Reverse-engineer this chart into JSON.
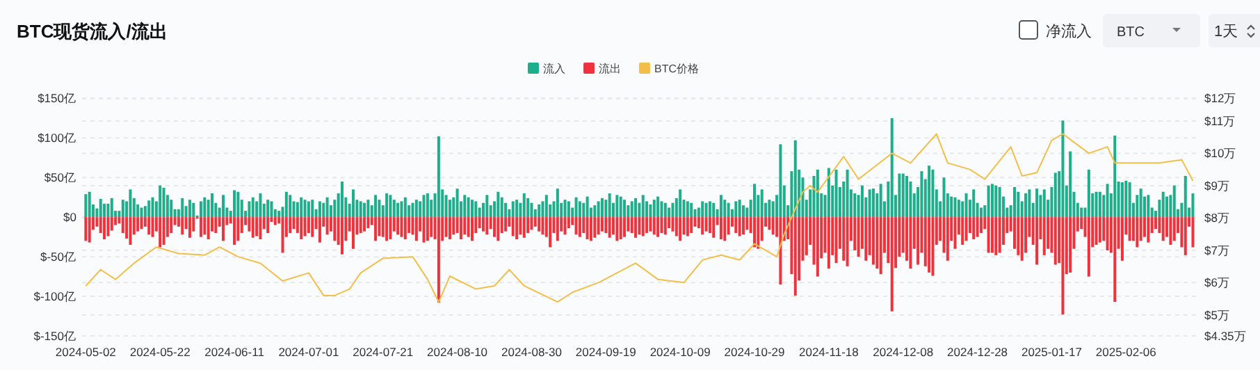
{
  "chart_data": {
    "type": "bar",
    "title": "BTC现货流入/流出",
    "annotations": [
      "净流入",
      "BTC",
      "1天"
    ],
    "legend": "top",
    "grid": "y",
    "x": [
      "2024-05-02",
      "2024-05-03",
      "2024-05-04",
      "2024-05-05",
      "2024-05-06",
      "2024-05-07",
      "2024-05-08",
      "2024-05-09",
      "2024-05-10",
      "2024-05-11",
      "2024-05-12",
      "2024-05-13",
      "2024-05-14",
      "2024-05-15",
      "2024-05-16",
      "2024-05-17",
      "2024-05-18",
      "2024-05-19",
      "2024-05-20",
      "2024-05-21",
      "2024-05-22",
      "2024-05-23",
      "2024-05-24",
      "2024-05-25",
      "2024-05-26",
      "2024-05-27",
      "2024-05-28",
      "2024-05-29",
      "2024-05-30",
      "2024-05-31",
      "2024-06-01",
      "2024-06-02",
      "2024-06-03",
      "2024-06-04",
      "2024-06-05",
      "2024-06-06",
      "2024-06-07",
      "2024-06-08",
      "2024-06-09",
      "2024-06-10",
      "2024-06-11",
      "2024-06-12",
      "2024-06-13",
      "2024-06-14",
      "2024-06-15",
      "2024-06-16",
      "2024-06-17",
      "2024-06-18",
      "2024-06-19",
      "2024-06-20",
      "2024-06-21",
      "2024-06-22",
      "2024-06-23",
      "2024-06-24",
      "2024-06-25",
      "2024-06-26",
      "2024-06-27",
      "2024-06-28",
      "2024-06-29",
      "2024-06-30",
      "2024-07-01",
      "2024-07-02",
      "2024-07-03",
      "2024-07-04",
      "2024-07-05",
      "2024-07-06",
      "2024-07-07",
      "2024-07-08",
      "2024-07-09",
      "2024-07-10",
      "2024-07-11",
      "2024-07-12",
      "2024-07-13",
      "2024-07-14",
      "2024-07-15",
      "2024-07-16",
      "2024-07-17",
      "2024-07-18",
      "2024-07-19",
      "2024-07-20",
      "2024-07-21",
      "2024-07-22",
      "2024-07-23",
      "2024-07-24",
      "2024-07-25",
      "2024-07-26",
      "2024-07-27",
      "2024-07-28",
      "2024-07-29",
      "2024-07-30",
      "2024-07-31",
      "2024-08-01",
      "2024-08-02",
      "2024-08-03",
      "2024-08-04",
      "2024-08-05",
      "2024-08-06",
      "2024-08-07",
      "2024-08-08",
      "2024-08-09",
      "2024-08-10",
      "2024-08-11",
      "2024-08-12",
      "2024-08-13",
      "2024-08-14",
      "2024-08-15",
      "2024-08-16",
      "2024-08-17",
      "2024-08-18",
      "2024-08-19",
      "2024-08-20",
      "2024-08-21",
      "2024-08-22",
      "2024-08-23",
      "2024-08-24",
      "2024-08-25",
      "2024-08-26",
      "2024-08-27",
      "2024-08-28",
      "2024-08-29",
      "2024-08-30",
      "2024-08-31",
      "2024-09-01",
      "2024-09-02",
      "2024-09-03",
      "2024-09-04",
      "2024-09-05",
      "2024-09-06",
      "2024-09-07",
      "2024-09-08",
      "2024-09-09",
      "2024-09-10",
      "2024-09-11",
      "2024-09-12",
      "2024-09-13",
      "2024-09-14",
      "2024-09-15",
      "2024-09-16",
      "2024-09-17",
      "2024-09-18",
      "2024-09-19",
      "2024-09-20",
      "2024-09-21",
      "2024-09-22",
      "2024-09-23",
      "2024-09-24",
      "2024-09-25",
      "2024-09-26",
      "2024-09-27",
      "2024-09-28",
      "2024-09-29",
      "2024-09-30",
      "2024-10-01",
      "2024-10-02",
      "2024-10-03",
      "2024-10-04",
      "2024-10-05",
      "2024-10-06",
      "2024-10-07",
      "2024-10-08",
      "2024-10-09",
      "2024-10-10",
      "2024-10-11",
      "2024-10-12",
      "2024-10-13",
      "2024-10-14",
      "2024-10-15",
      "2024-10-16",
      "2024-10-17",
      "2024-10-18",
      "2024-10-19",
      "2024-10-20",
      "2024-10-21",
      "2024-10-22",
      "2024-10-23",
      "2024-10-24",
      "2024-10-25",
      "2024-10-26",
      "2024-10-27",
      "2024-10-28",
      "2024-10-29",
      "2024-10-30",
      "2024-10-31",
      "2024-11-01",
      "2024-11-02",
      "2024-11-03",
      "2024-11-04",
      "2024-11-05",
      "2024-11-06",
      "2024-11-07",
      "2024-11-08",
      "2024-11-09",
      "2024-11-10",
      "2024-11-11",
      "2024-11-12",
      "2024-11-13",
      "2024-11-14",
      "2024-11-15",
      "2024-11-16",
      "2024-11-17",
      "2024-11-18",
      "2024-11-19",
      "2024-11-20",
      "2024-11-21",
      "2024-11-22",
      "2024-11-23",
      "2024-11-24",
      "2024-11-25",
      "2024-11-26",
      "2024-11-27",
      "2024-11-28",
      "2024-11-29",
      "2024-11-30",
      "2024-12-01",
      "2024-12-02",
      "2024-12-03",
      "2024-12-04",
      "2024-12-05",
      "2024-12-06",
      "2024-12-07",
      "2024-12-08",
      "2024-12-09",
      "2024-12-10",
      "2024-12-11",
      "2024-12-12",
      "2024-12-13",
      "2024-12-14",
      "2024-12-15",
      "2024-12-16",
      "2024-12-17",
      "2024-12-18",
      "2024-12-19",
      "2024-12-20",
      "2024-12-21",
      "2024-12-22",
      "2024-12-23",
      "2024-12-24",
      "2024-12-25",
      "2024-12-26",
      "2024-12-27",
      "2024-12-28",
      "2024-12-29",
      "2024-12-30",
      "2024-12-31",
      "2025-01-01",
      "2025-01-02",
      "2025-01-03",
      "2025-01-04",
      "2025-01-05",
      "2025-01-06",
      "2025-01-07",
      "2025-01-08",
      "2025-01-09",
      "2025-01-10",
      "2025-01-11",
      "2025-01-12",
      "2025-01-13",
      "2025-01-14",
      "2025-01-15",
      "2025-01-16",
      "2025-01-17",
      "2025-01-18",
      "2025-01-19",
      "2025-01-20",
      "2025-01-21",
      "2025-01-22",
      "2025-01-23",
      "2025-01-24",
      "2025-01-25",
      "2025-01-26",
      "2025-01-27",
      "2025-01-28",
      "2025-01-29",
      "2025-01-30",
      "2025-01-31",
      "2025-02-01",
      "2025-02-02",
      "2025-02-03",
      "2025-02-04",
      "2025-02-05",
      "2025-02-06",
      "2025-02-07",
      "2025-02-08",
      "2025-02-09",
      "2025-02-10",
      "2025-02-11",
      "2025-02-12",
      "2025-02-13",
      "2025-02-14",
      "2025-02-15",
      "2025-02-16",
      "2025-02-17",
      "2025-02-18",
      "2025-02-19",
      "2025-02-20",
      "2025-02-21",
      "2025-02-22",
      "2025-02-23",
      "2025-02-24"
    ],
    "xlim": [
      "2024-05-01",
      "2025-02-25"
    ],
    "xticks": [
      "2024-05-02",
      "2024-05-22",
      "2024-06-11",
      "2024-07-01",
      "2024-07-21",
      "2024-08-10",
      "2024-08-30",
      "2024-09-19",
      "2024-10-09",
      "2024-10-29",
      "2024-11-18",
      "2024-12-08",
      "2024-12-28",
      "2025-01-17",
      "2025-02-06"
    ],
    "ylim": [
      -150,
      150
    ],
    "yticks": [
      {
        "value": -150,
        "label": "$-150亿"
      },
      {
        "value": -100,
        "label": "$-100亿"
      },
      {
        "value": -50,
        "label": "$-50亿"
      },
      {
        "value": 0,
        "label": "$0"
      },
      {
        "value": 50,
        "label": "$50亿"
      },
      {
        "value": 100,
        "label": "$100亿"
      },
      {
        "value": 150,
        "label": "$150亿"
      }
    ],
    "y2lim": [
      4.35,
      11.7
    ],
    "y2ticks": [
      {
        "value": 4.35,
        "label": "$4.35万"
      },
      {
        "value": 5,
        "label": "$5万"
      },
      {
        "value": 6,
        "label": "$6万"
      },
      {
        "value": 7,
        "label": "$7万"
      },
      {
        "value": 8,
        "label": "$8万"
      },
      {
        "value": 9,
        "label": "$9万"
      },
      {
        "value": 10,
        "label": "$10万"
      },
      {
        "value": 11,
        "label": "$11万"
      },
      {
        "value": 11.7,
        "label": "$12万"
      }
    ],
    "series": [
      {
        "name": "流入",
        "color": "#1fae8c",
        "values": [
          29,
          32,
          16,
          11,
          23,
          17,
          17,
          24,
          8,
          8,
          22,
          20,
          35,
          24,
          16,
          12,
          14,
          21,
          25,
          20,
          40,
          37,
          28,
          22,
          10,
          10,
          24,
          14,
          22,
          18,
          2,
          20,
          25,
          22,
          30,
          18,
          12,
          28,
          12,
          8,
          34,
          32,
          22,
          8,
          20,
          25,
          20,
          30,
          17,
          22,
          20,
          10,
          8,
          13,
          32,
          28,
          20,
          19,
          25,
          22,
          20,
          22,
          10,
          20,
          18,
          25,
          15,
          22,
          30,
          45,
          25,
          17,
          35,
          22,
          20,
          18,
          22,
          15,
          28,
          22,
          15,
          30,
          28,
          22,
          18,
          20,
          25,
          15,
          18,
          22,
          20,
          28,
          30,
          22,
          30,
          102,
          35,
          28,
          22,
          25,
          36,
          20,
          28,
          25,
          22,
          20,
          12,
          18,
          28,
          15,
          20,
          32,
          25,
          18,
          10,
          20,
          22,
          18,
          30,
          24,
          18,
          10,
          16,
          20,
          28,
          16,
          20,
          36,
          18,
          22,
          20,
          12,
          25,
          20,
          18,
          26,
          12,
          15,
          20,
          24,
          22,
          30,
          18,
          28,
          26,
          22,
          15,
          20,
          24,
          18,
          28,
          20,
          16,
          22,
          26,
          20,
          18,
          12,
          18,
          24,
          35,
          22,
          20,
          18,
          10,
          12,
          20,
          18,
          20,
          18,
          10,
          28,
          22,
          18,
          10,
          20,
          22,
          15,
          12,
          22,
          42,
          28,
          35,
          18,
          22,
          20,
          28,
          92,
          40,
          15,
          58,
          97,
          60,
          50,
          22,
          35,
          52,
          60,
          30,
          28,
          62,
          40,
          60,
          38,
          45,
          60,
          35,
          30,
          28,
          40,
          25,
          35,
          36,
          30,
          42,
          20,
          45,
          125,
          28,
          55,
          55,
          52,
          45,
          30,
          38,
          58,
          48,
          65,
          60,
          35,
          20,
          50,
          30,
          26,
          25,
          22,
          20,
          30,
          22,
          35,
          18,
          12,
          15,
          40,
          42,
          40,
          38,
          26,
          12,
          15,
          38,
          32,
          20,
          30,
          35,
          18,
          36,
          28,
          35,
          22,
          38,
          56,
          58,
          122,
          40,
          83,
          32,
          18,
          12,
          12,
          60,
          30,
          32,
          32,
          28,
          42,
          30,
          103,
          45,
          44,
          46,
          44,
          18,
          28,
          36,
          26,
          28,
          12,
          8,
          22,
          32,
          26,
          28,
          40,
          10,
          18,
          52,
          12,
          30
        ]
      },
      {
        "name": "流出",
        "color": "#f0323c",
        "values": [
          -30,
          -32,
          -16,
          -12,
          -20,
          -28,
          -24,
          -17,
          -10,
          -8,
          -20,
          -27,
          -35,
          -22,
          -18,
          -15,
          -12,
          -22,
          -25,
          -18,
          -38,
          -35,
          -25,
          -20,
          -10,
          -12,
          -22,
          -15,
          -26,
          -18,
          -2,
          -25,
          -22,
          -28,
          -18,
          -20,
          -12,
          -30,
          -10,
          -8,
          -35,
          -30,
          -20,
          -10,
          -18,
          -26,
          -24,
          -28,
          -15,
          -20,
          -6,
          -10,
          -8,
          -45,
          -25,
          -20,
          -15,
          -20,
          -28,
          -24,
          -20,
          -25,
          -15,
          -32,
          -12,
          -22,
          -18,
          -30,
          -35,
          -47,
          -30,
          -18,
          -40,
          -22,
          -20,
          -18,
          -14,
          -10,
          -30,
          -24,
          -25,
          -30,
          -28,
          -18,
          -22,
          -25,
          -28,
          -20,
          -22,
          -30,
          -18,
          -32,
          -30,
          -25,
          -28,
          -108,
          -30,
          -25,
          -28,
          -22,
          -20,
          -28,
          -22,
          -25,
          -30,
          -20,
          -14,
          -18,
          -22,
          -15,
          -25,
          -30,
          -20,
          -18,
          -12,
          -24,
          -28,
          -22,
          -26,
          -20,
          -16,
          -12,
          -18,
          -22,
          -25,
          -38,
          -20,
          -30,
          -18,
          -22,
          -14,
          -10,
          -22,
          -25,
          -20,
          -28,
          -30,
          -26,
          -22,
          -18,
          -20,
          -26,
          -22,
          -30,
          -28,
          -25,
          -18,
          -20,
          -26,
          -22,
          -24,
          -20,
          -18,
          -22,
          -25,
          -20,
          -22,
          -14,
          -18,
          -24,
          -30,
          -22,
          -24,
          -20,
          -12,
          -14,
          -22,
          -18,
          -20,
          -26,
          -10,
          -28,
          -30,
          -22,
          -12,
          -20,
          -24,
          -22,
          -16,
          -20,
          -38,
          -40,
          -30,
          -12,
          -16,
          -22,
          -25,
          -85,
          -30,
          -28,
          -72,
          -99,
          -80,
          -55,
          -48,
          -35,
          -60,
          -75,
          -52,
          -45,
          -65,
          -48,
          -58,
          -40,
          -55,
          -62,
          -30,
          -42,
          -50,
          -40,
          -55,
          -48,
          -60,
          -65,
          -72,
          -45,
          -58,
          -119,
          -64,
          -50,
          -45,
          -55,
          -65,
          -40,
          -60,
          -45,
          -62,
          -70,
          -74,
          -35,
          -30,
          -45,
          -55,
          -30,
          -40,
          -22,
          -35,
          -30,
          -20,
          -28,
          -25,
          -20,
          -15,
          -45,
          -45,
          -48,
          -45,
          -35,
          -20,
          -18,
          -40,
          -48,
          -55,
          -45,
          -25,
          -35,
          -60,
          -28,
          -48,
          -40,
          -45,
          -60,
          -58,
          -123,
          -72,
          -70,
          -40,
          -18,
          -15,
          -25,
          -75,
          -38,
          -35,
          -32,
          -30,
          -42,
          -45,
          -107,
          -40,
          -55,
          -22,
          -30,
          -30,
          -38,
          -30,
          -25,
          -32,
          -20,
          -15,
          -20,
          -30,
          -25,
          -35,
          -30,
          -20,
          -38,
          -48,
          -12,
          -38
        ]
      },
      {
        "name": "BTC价格",
        "type": "line",
        "axis": "y2",
        "color": "#f2bf4b",
        "x": [
          "2024-05-02",
          "2024-05-06",
          "2024-05-10",
          "2024-05-15",
          "2024-05-21",
          "2024-05-27",
          "2024-06-03",
          "2024-06-07",
          "2024-06-12",
          "2024-06-18",
          "2024-06-24",
          "2024-07-01",
          "2024-07-05",
          "2024-07-08",
          "2024-07-12",
          "2024-07-15",
          "2024-07-21",
          "2024-07-29",
          "2024-08-02",
          "2024-08-05",
          "2024-08-08",
          "2024-08-15",
          "2024-08-20",
          "2024-08-24",
          "2024-08-28",
          "2024-09-06",
          "2024-09-10",
          "2024-09-17",
          "2024-09-27",
          "2024-10-03",
          "2024-10-10",
          "2024-10-15",
          "2024-10-20",
          "2024-10-25",
          "2024-10-29",
          "2024-11-04",
          "2024-11-06",
          "2024-11-11",
          "2024-11-13",
          "2024-11-15",
          "2024-11-22",
          "2024-11-26",
          "2024-12-05",
          "2024-12-10",
          "2024-12-17",
          "2024-12-20",
          "2024-12-26",
          "2024-12-30",
          "2025-01-06",
          "2025-01-09",
          "2025-01-13",
          "2025-01-17",
          "2025-01-20",
          "2025-01-27",
          "2025-02-01",
          "2025-02-03",
          "2025-02-06",
          "2025-02-15",
          "2025-02-21",
          "2025-02-24"
        ],
        "values": [
          5.9,
          6.4,
          6.1,
          6.6,
          7.1,
          6.9,
          6.85,
          7.1,
          6.8,
          6.6,
          6.05,
          6.3,
          5.6,
          5.6,
          5.8,
          6.3,
          6.75,
          6.8,
          6.1,
          5.4,
          6.2,
          5.8,
          5.9,
          6.4,
          5.9,
          5.4,
          5.7,
          6.0,
          6.6,
          6.1,
          6.0,
          6.7,
          6.85,
          6.7,
          7.2,
          6.8,
          7.5,
          8.8,
          9.0,
          8.8,
          9.9,
          9.2,
          10.0,
          9.7,
          10.6,
          9.7,
          9.5,
          9.2,
          10.2,
          9.3,
          9.4,
          10.4,
          10.6,
          10.0,
          10.2,
          9.7,
          9.7,
          9.7,
          9.8,
          9.15
        ]
      }
    ]
  }
}
